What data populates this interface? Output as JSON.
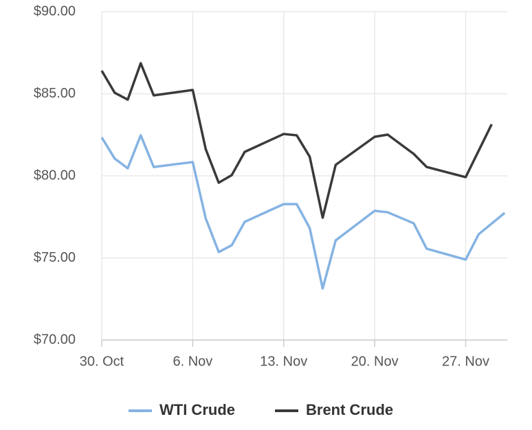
{
  "chart_data": {
    "type": "line",
    "series": [
      {
        "name": "WTI Crude",
        "color": "#85b3e3",
        "x": [
          0,
          1,
          2,
          3,
          4,
          7,
          8,
          9,
          10,
          11,
          14,
          15,
          16,
          17,
          18,
          21,
          22,
          24,
          25,
          28,
          29,
          31
        ],
        "values": [
          82.34,
          81.05,
          80.46,
          82.47,
          80.54,
          80.84,
          77.41,
          75.36,
          75.77,
          77.2,
          78.28,
          78.28,
          76.82,
          73.14,
          76.07,
          77.87,
          77.78,
          77.11,
          75.56,
          74.9,
          76.44,
          77.74
        ]
      },
      {
        "name": "Brent Crude",
        "color": "#3a3a3c",
        "x": [
          0,
          1,
          2,
          3,
          4,
          7,
          8,
          9,
          10,
          11,
          14,
          15,
          16,
          17,
          18,
          21,
          22,
          24,
          25,
          28,
          30
        ],
        "values": [
          86.4,
          85.06,
          84.64,
          86.86,
          84.9,
          85.23,
          81.63,
          79.58,
          80.04,
          81.46,
          82.55,
          82.47,
          81.17,
          77.45,
          80.67,
          82.38,
          82.51,
          81.34,
          80.54,
          79.92,
          83.14
        ]
      }
    ],
    "xlim": [
      0,
      31.2
    ],
    "xticks": [
      {
        "value": 0,
        "label": "30. Oct"
      },
      {
        "value": 7,
        "label": "6. Nov"
      },
      {
        "value": 14,
        "label": "13. Nov"
      },
      {
        "value": 21,
        "label": "20. Nov"
      },
      {
        "value": 28,
        "label": "27. Nov"
      }
    ],
    "ylim": [
      70,
      90
    ],
    "yticks": [
      {
        "value": 70,
        "label": "$70.00"
      },
      {
        "value": 75,
        "label": "$75.00"
      },
      {
        "value": 80,
        "label": "$80.00"
      },
      {
        "value": 85,
        "label": "$85.00"
      },
      {
        "value": 90,
        "label": "$90.00"
      }
    ],
    "grid": true
  }
}
